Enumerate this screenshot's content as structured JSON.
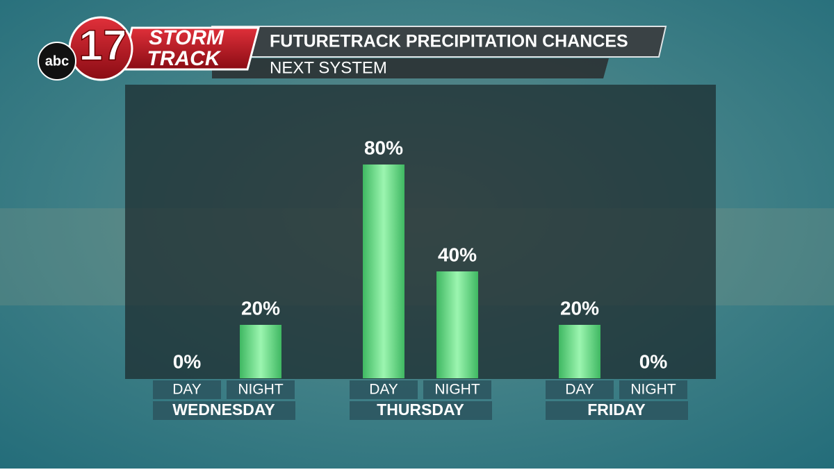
{
  "logo": {
    "network": "abc",
    "channel": "17",
    "brand_line1": "STORM",
    "brand_line2": "TRACK"
  },
  "chart_data": {
    "type": "bar",
    "title": "FUTURETRACK PRECIPITATION CHANCES",
    "subtitle": "NEXT SYSTEM",
    "categories": [
      "DAY",
      "NIGHT",
      "DAY",
      "NIGHT",
      "DAY",
      "NIGHT"
    ],
    "groups": [
      "WEDNESDAY",
      "THURSDAY",
      "FRIDAY"
    ],
    "values": [
      0,
      20,
      80,
      40,
      20,
      0
    ],
    "value_labels": [
      "0%",
      "20%",
      "80%",
      "40%",
      "20%",
      "0%"
    ],
    "color": "#6fe08a"
  }
}
